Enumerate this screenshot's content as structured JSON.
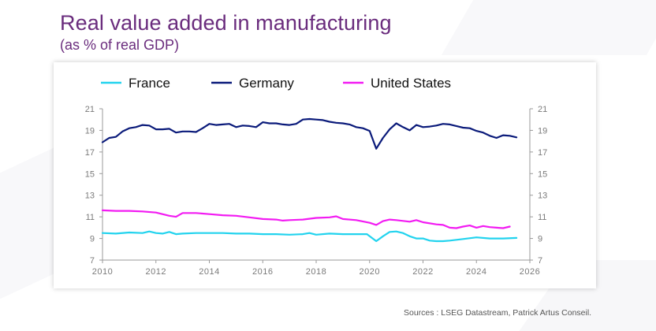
{
  "header": {
    "title": "Real value added in manufacturing",
    "subtitle": "(as % of real GDP)"
  },
  "footer": {
    "source": "Sources : LSEG Datastream, Patrick Artus Conseil."
  },
  "colors": {
    "France": "#22d3ee",
    "Germany": "#0a1a7a",
    "United States": "#f21bf2",
    "title": "#6a2c7d"
  },
  "chart_data": {
    "type": "line",
    "title": "",
    "xlabel": "",
    "ylabel": "",
    "xlim": [
      2010,
      2026
    ],
    "ylim": [
      7,
      21
    ],
    "x_ticks": [
      2010,
      2012,
      2014,
      2016,
      2018,
      2020,
      2022,
      2024,
      2026
    ],
    "y_ticks": [
      7,
      9,
      11,
      13,
      15,
      17,
      19,
      21
    ],
    "y_axis_right_mirrored": true,
    "grid": false,
    "legend": "top",
    "series": [
      {
        "name": "France",
        "color": "#22d3ee",
        "x": [
          2010.0,
          2010.5,
          2011.0,
          2011.5,
          2011.75,
          2012.0,
          2012.25,
          2012.5,
          2012.75,
          2013.0,
          2013.5,
          2014.0,
          2014.5,
          2015.0,
          2015.5,
          2016.0,
          2016.5,
          2017.0,
          2017.5,
          2017.75,
          2018.0,
          2018.5,
          2019.0,
          2019.5,
          2019.9,
          2020.25,
          2020.5,
          2020.75,
          2021.0,
          2021.25,
          2021.5,
          2021.75,
          2022.0,
          2022.25,
          2022.5,
          2022.75,
          2023.0,
          2023.5,
          2024.0,
          2024.5,
          2025.0,
          2025.5
        ],
        "y": [
          9.5,
          9.45,
          9.55,
          9.5,
          9.65,
          9.5,
          9.45,
          9.6,
          9.4,
          9.45,
          9.5,
          9.5,
          9.5,
          9.45,
          9.45,
          9.4,
          9.4,
          9.35,
          9.4,
          9.5,
          9.35,
          9.45,
          9.4,
          9.4,
          9.4,
          8.75,
          9.2,
          9.6,
          9.65,
          9.5,
          9.2,
          9.0,
          9.0,
          8.8,
          8.75,
          8.75,
          8.8,
          8.95,
          9.1,
          9.0,
          9.0,
          9.05
        ]
      },
      {
        "name": "Germany",
        "color": "#0a1a7a",
        "x": [
          2010.0,
          2010.25,
          2010.5,
          2010.75,
          2011.0,
          2011.25,
          2011.5,
          2011.75,
          2012.0,
          2012.25,
          2012.5,
          2012.75,
          2013.0,
          2013.25,
          2013.5,
          2013.75,
          2014.0,
          2014.25,
          2014.5,
          2014.75,
          2015.0,
          2015.25,
          2015.5,
          2015.75,
          2016.0,
          2016.25,
          2016.5,
          2016.75,
          2017.0,
          2017.25,
          2017.5,
          2017.75,
          2018.0,
          2018.25,
          2018.5,
          2018.75,
          2019.0,
          2019.25,
          2019.5,
          2019.75,
          2020.0,
          2020.25,
          2020.5,
          2020.75,
          2021.0,
          2021.25,
          2021.5,
          2021.75,
          2022.0,
          2022.25,
          2022.5,
          2022.75,
          2023.0,
          2023.25,
          2023.5,
          2023.75,
          2024.0,
          2024.25,
          2024.5,
          2024.75,
          2025.0,
          2025.25,
          2025.5
        ],
        "y": [
          17.9,
          18.3,
          18.4,
          18.9,
          19.2,
          19.3,
          19.5,
          19.45,
          19.1,
          19.1,
          19.15,
          18.8,
          18.9,
          18.9,
          18.85,
          19.2,
          19.6,
          19.5,
          19.55,
          19.6,
          19.3,
          19.45,
          19.4,
          19.3,
          19.75,
          19.65,
          19.65,
          19.55,
          19.5,
          19.6,
          20.0,
          20.05,
          20.0,
          19.95,
          19.8,
          19.7,
          19.65,
          19.55,
          19.3,
          19.2,
          18.95,
          17.3,
          18.3,
          19.1,
          19.65,
          19.3,
          19.0,
          19.5,
          19.3,
          19.35,
          19.45,
          19.6,
          19.55,
          19.4,
          19.25,
          19.2,
          18.95,
          18.8,
          18.5,
          18.3,
          18.55,
          18.5,
          18.35
        ]
      },
      {
        "name": "United States",
        "color": "#f21bf2",
        "x": [
          2010.0,
          2010.5,
          2011.0,
          2011.5,
          2012.0,
          2012.5,
          2012.75,
          2013.0,
          2013.5,
          2014.0,
          2014.5,
          2015.0,
          2015.5,
          2016.0,
          2016.5,
          2016.75,
          2017.0,
          2017.5,
          2018.0,
          2018.5,
          2018.75,
          2019.0,
          2019.5,
          2020.0,
          2020.25,
          2020.5,
          2020.75,
          2021.0,
          2021.5,
          2021.75,
          2022.0,
          2022.5,
          2022.75,
          2023.0,
          2023.25,
          2023.5,
          2023.75,
          2024.0,
          2024.25,
          2024.5,
          2024.75,
          2025.0,
          2025.25
        ],
        "y": [
          11.6,
          11.55,
          11.55,
          11.5,
          11.4,
          11.1,
          11.0,
          11.35,
          11.35,
          11.25,
          11.15,
          11.1,
          10.95,
          10.8,
          10.75,
          10.65,
          10.7,
          10.75,
          10.9,
          10.95,
          11.05,
          10.8,
          10.7,
          10.45,
          10.25,
          10.6,
          10.75,
          10.7,
          10.55,
          10.7,
          10.5,
          10.3,
          10.25,
          10.0,
          9.95,
          10.1,
          10.2,
          10.0,
          10.15,
          10.05,
          10.0,
          9.95,
          10.1
        ]
      }
    ]
  }
}
